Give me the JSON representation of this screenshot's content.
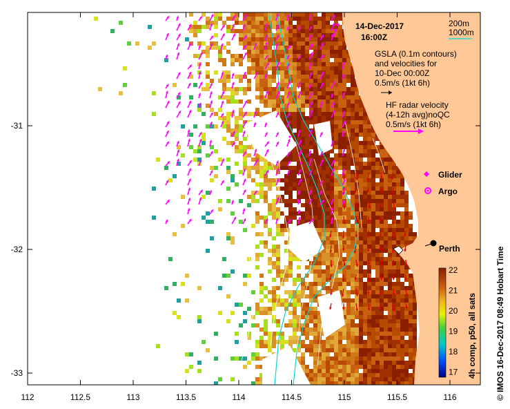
{
  "map": {
    "date": "14-Dec-2017",
    "time": "16:00Z",
    "city": "Perth",
    "footer": "© IMOS 16-Dec-2017 08:49 Hobart Time",
    "x_ticks": [
      "112",
      "112.5",
      "113",
      "113.5",
      "114",
      "114.5",
      "115",
      "115.5",
      "116"
    ],
    "y_ticks": [
      "-31",
      "-32",
      "-33"
    ]
  },
  "legend": {
    "contour_200": "200m",
    "contour_1000": "1000m",
    "gsla_line1": "GSLA (0.1m contours)",
    "gsla_line2": "and velocities for",
    "gsla_line3": "10-Dec 00:00Z",
    "gsla_scale": "0.5m/s (1kt 6h)",
    "hf_line1": "HF radar velocity",
    "hf_line2": "(4-12h avg)noQC",
    "hf_scale": "0.5m/s (1kt 6h)",
    "glider": "Glider",
    "argo": "Argo"
  },
  "colorbar": {
    "title": "4h comp, p50, all sats",
    "ticks": [
      "22",
      "21",
      "20",
      "19",
      "18",
      "17"
    ]
  },
  "colors": {
    "land": "#ffc896",
    "hf_arrow": "#ff00ff",
    "gsla_arrow": "#e00000",
    "contour_200": "#00e0e0",
    "sst_warm": "#b44000"
  }
}
